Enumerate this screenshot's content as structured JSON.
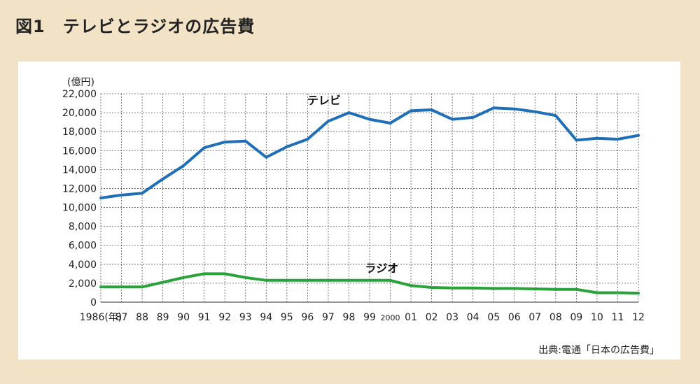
{
  "figure": {
    "title": "図1　テレビとラジオの広告費",
    "source": "出典:電通「日本の広告費」"
  },
  "colors": {
    "background": "#f2e3c6",
    "panel": "#ffffff",
    "tv": "#1f6fb8",
    "radio": "#2aa23a",
    "grid": "#555555"
  },
  "chart_data": {
    "type": "line",
    "title": "",
    "ylabel": "(億円)",
    "xlabel": "",
    "ylim": [
      0,
      22000
    ],
    "yticks": [
      0,
      2000,
      4000,
      6000,
      8000,
      10000,
      12000,
      14000,
      16000,
      18000,
      20000,
      22000
    ],
    "ytick_labels": [
      "0",
      "2,000",
      "4,000",
      "6,000",
      "8,000",
      "10,000",
      "12,000",
      "14,000",
      "16,000",
      "18,000",
      "20,000",
      "22,000"
    ],
    "x": [
      1986,
      1987,
      1988,
      1989,
      1990,
      1991,
      1992,
      1993,
      1994,
      1995,
      1996,
      1997,
      1998,
      1999,
      2000,
      2001,
      2002,
      2003,
      2004,
      2005,
      2006,
      2007,
      2008,
      2009,
      2010,
      2011,
      2012
    ],
    "xtick_labels": [
      "1986(年)",
      "87",
      "88",
      "89",
      "90",
      "91",
      "92",
      "93",
      "94",
      "95",
      "96",
      "97",
      "98",
      "99",
      "2000",
      "01",
      "02",
      "03",
      "04",
      "05",
      "06",
      "07",
      "08",
      "09",
      "10",
      "11",
      "12"
    ],
    "grid": true,
    "series": [
      {
        "name": "テレビ",
        "color": "#1f6fb8",
        "values": [
          11000,
          11300,
          11500,
          13000,
          14400,
          16300,
          16900,
          17000,
          15300,
          16400,
          17200,
          19100,
          20000,
          19300,
          18900,
          20200,
          20300,
          19300,
          19500,
          20500,
          20400,
          20100,
          19700,
          17100,
          17300,
          17200,
          17600
        ]
      },
      {
        "name": "ラジオ",
        "color": "#2aa23a",
        "values": [
          1600,
          1600,
          1600,
          2100,
          2600,
          3000,
          3000,
          2600,
          2300,
          2300,
          2300,
          2300,
          2300,
          2300,
          2300,
          1750,
          1550,
          1500,
          1500,
          1450,
          1450,
          1400,
          1350,
          1350,
          1000,
          1000,
          950
        ]
      }
    ]
  }
}
